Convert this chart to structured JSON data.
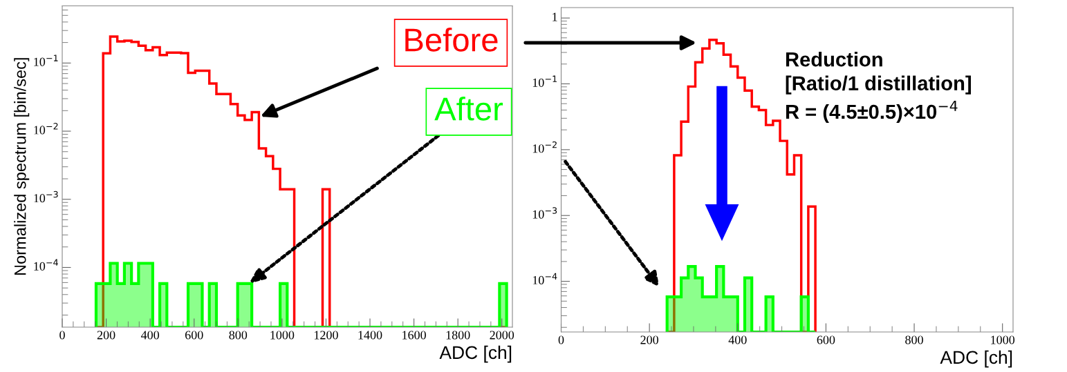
{
  "chart_data": [
    {
      "type": "histogram",
      "ylabel": "Normalized spectrum [bin/sec]",
      "xlabel": "ADC [ch]",
      "log": true,
      "xlim": [
        0,
        2048
      ],
      "xticks": [
        0,
        200,
        400,
        600,
        800,
        1000,
        1200,
        1400,
        1600,
        1800,
        2000
      ],
      "ylim": [
        1.33e-05,
        0.69
      ],
      "yticks": [
        {
          "value": 0.0001,
          "label": "10$^{−4}$"
        },
        {
          "value": 0.001,
          "label": "10$^{−3}$"
        },
        {
          "value": 0.01,
          "label": "10$^{−2}$"
        },
        {
          "value": 0.1,
          "label": "10$^{−1}$"
        }
      ],
      "annotations": [
        "Before",
        {
          "text": "After",
          "x": 850,
          "y": 5.8e-05
        }
      ],
      "bins": [
        154.0,
        186.2,
        218.4,
        250.6,
        282.8,
        315.0,
        347.2,
        379.4,
        411.6,
        443.8,
        476.0,
        508.2,
        540.4,
        572.6,
        604.8,
        637.0,
        669.2,
        701.4,
        733.6,
        765.8,
        798.0,
        830.2,
        862.4,
        894.6,
        926.8,
        959.0,
        991.2,
        1023.4,
        1055.6,
        1087.8,
        1120.0,
        1152.2,
        1184.4,
        1216.6,
        1248.8,
        1281.0,
        1313.2,
        1345.4,
        1377.6,
        1409.8,
        1442.0,
        1474.2,
        1506.4,
        1538.6,
        1570.8,
        1603.0,
        1635.2,
        1667.4,
        1699.6,
        1731.8,
        1764.0,
        1796.2,
        1828.4,
        1860.6,
        1892.8,
        1925.0,
        1957.2,
        1989.4,
        2021.6
      ],
      "series": [
        {
          "type": "histogram",
          "color": "#ff0000",
          "values": [
            null,
            0.139,
            0.245,
            0.208,
            0.213,
            0.204,
            0.179,
            0.154,
            0.17,
            0.131,
            0.142,
            0.142,
            0.14,
            0.072,
            0.077,
            0.077,
            0.05,
            0.035,
            0.035,
            0.025,
            0.017,
            0.0146,
            0.019,
            0.0056,
            0.0043,
            0.0028,
            0.0014,
            0.0014,
            null,
            null,
            null,
            null,
            0.0014,
            null,
            null,
            null,
            null,
            null,
            null,
            null,
            null,
            null,
            null,
            null,
            null,
            null,
            null,
            null,
            null,
            null,
            null,
            null,
            null,
            null,
            null,
            null,
            null,
            null
          ]
        },
        {
          "type": "histogram",
          "color": "#00ff00",
          "values": [
            5.8e-05,
            5.8e-05,
            0.000115,
            5.8e-05,
            0.000115,
            5.8e-05,
            0.000115,
            0.000115,
            null,
            5.8e-05,
            null,
            null,
            null,
            5.8e-05,
            5.8e-05,
            null,
            5.8e-05,
            null,
            null,
            null,
            5.8e-05,
            5.8e-05,
            null,
            null,
            null,
            null,
            5.8e-05,
            null,
            null,
            null,
            null,
            null,
            null,
            null,
            null,
            null,
            null,
            null,
            null,
            null,
            null,
            null,
            null,
            null,
            null,
            null,
            null,
            null,
            null,
            null,
            null,
            null,
            null,
            null,
            null,
            null,
            null,
            5.8e-05
          ]
        }
      ]
    },
    {
      "type": "histogram",
      "xlabel": "ADC [ch]",
      "log": true,
      "xlim": [
        0,
        1024
      ],
      "xticks": [
        0,
        200,
        400,
        600,
        800,
        1000
      ],
      "ylim": [
        1.7e-05,
        1.44
      ],
      "yticks": [
        {
          "value": 0.0001,
          "label": "10$^{−4}$"
        },
        {
          "value": 0.001,
          "label": "10$^{−3}$"
        },
        {
          "value": 0.01,
          "label": "10$^{−2}$"
        },
        {
          "value": 0.1,
          "label": "10$^{−1}$"
        },
        1
      ],
      "annotations": [
        "Reduction\n[Ratio/1 distillation]\nR = (4.5±0.5)×10$^{−4}$"
      ],
      "bins": [
        240,
        256,
        272,
        288,
        304,
        320,
        336,
        352,
        368,
        384,
        400,
        416,
        432,
        448,
        464,
        480,
        496,
        512,
        528,
        544,
        560,
        576
      ],
      "series": [
        {
          "type": "histogram",
          "color": "#ff0000",
          "values": [
            null,
            0.0082,
            0.0267,
            0.091,
            0.213,
            0.345,
            0.467,
            0.413,
            0.277,
            0.184,
            0.124,
            0.079,
            0.045,
            0.04,
            0.0237,
            0.0274,
            0.0136,
            0.0042,
            0.0082,
            null,
            0.00137
          ]
        },
        {
          "type": "histogram",
          "color": "#00ff00",
          "values": [
            5.8e-05,
            5.8e-05,
            0.000113,
            0.000168,
            0.000113,
            5.8e-05,
            5.8e-05,
            0.000168,
            5.8e-05,
            5.8e-05,
            null,
            0.000113,
            null,
            null,
            5.8e-05,
            null,
            null,
            null,
            null,
            5.8e-05,
            null
          ]
        }
      ]
    }
  ]
}
